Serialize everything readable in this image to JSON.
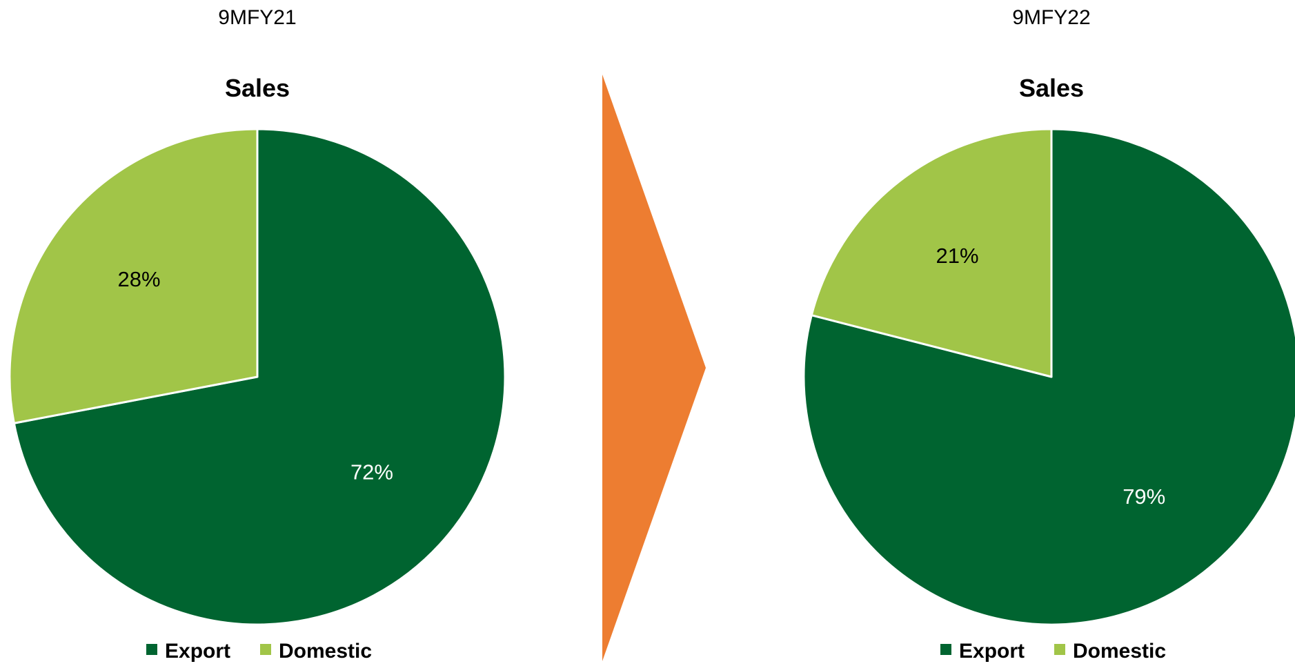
{
  "colors": {
    "export": "#006430",
    "domestic": "#a1c548",
    "arrow": "#ed7d31",
    "slice_border": "#ffffff",
    "export_label": "#ffffff",
    "domestic_label": "#000000"
  },
  "chart_data": [
    {
      "type": "pie",
      "period": "9MFY21",
      "title": "Sales",
      "legend_position": "bottom",
      "slices": [
        {
          "name": "Export",
          "value": 72,
          "label": "72%",
          "color": "#006430"
        },
        {
          "name": "Domestic",
          "value": 28,
          "label": "28%",
          "color": "#a1c548"
        }
      ]
    },
    {
      "type": "pie",
      "period": "9MFY22",
      "title": "Sales",
      "legend_position": "bottom",
      "slices": [
        {
          "name": "Export",
          "value": 79,
          "label": "79%",
          "color": "#006430"
        },
        {
          "name": "Domestic",
          "value": 21,
          "label": "21%",
          "color": "#a1c548"
        }
      ]
    }
  ],
  "arrow": {
    "icon": "chevron-right-icon"
  }
}
